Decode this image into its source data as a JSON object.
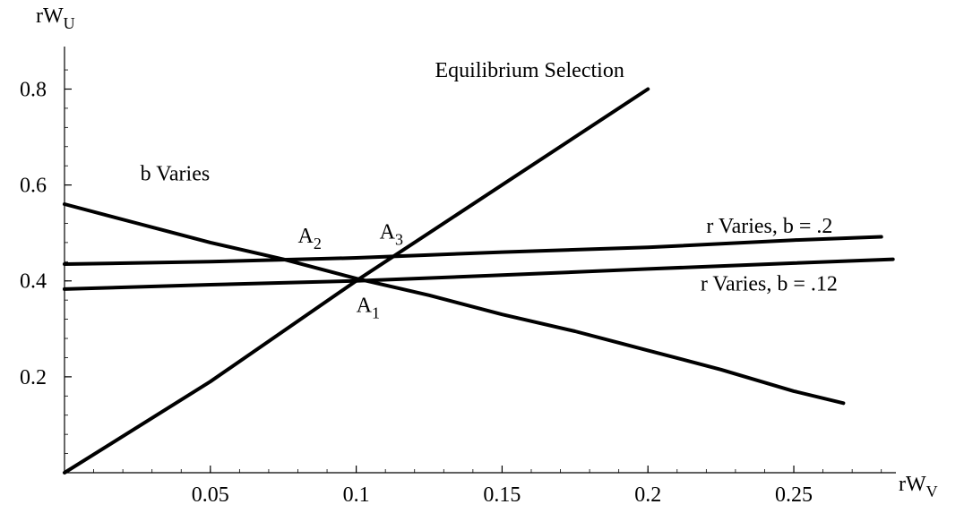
{
  "chart_data": {
    "type": "line",
    "title": "",
    "xlabel": {
      "main": "rW",
      "sub": "V"
    },
    "ylabel": {
      "main": "rW",
      "sub": "U"
    },
    "xlim": [
      0,
      0.285
    ],
    "ylim": [
      0,
      0.87
    ],
    "x_ticks": [
      {
        "value": 0.05,
        "label": "0.05"
      },
      {
        "value": 0.1,
        "label": "0.1"
      },
      {
        "value": 0.15,
        "label": "0.15"
      },
      {
        "value": 0.2,
        "label": "0.2"
      },
      {
        "value": 0.25,
        "label": "0.25"
      }
    ],
    "y_ticks": [
      {
        "value": 0.2,
        "label": "0.2"
      },
      {
        "value": 0.4,
        "label": "0.4"
      },
      {
        "value": 0.6,
        "label": "0.6"
      },
      {
        "value": 0.8,
        "label": "0.8"
      }
    ],
    "x_minor_step": 0.01,
    "y_minor_step": 0.04,
    "grid": false,
    "series": [
      {
        "id": "equilibrium-selection",
        "x": [
          0,
          0.05,
          0.1,
          0.15,
          0.2
        ],
        "y": [
          0,
          0.19,
          0.4,
          0.6,
          0.8
        ]
      },
      {
        "id": "b-varies",
        "x": [
          0,
          0.025,
          0.05,
          0.075,
          0.1,
          0.125,
          0.15,
          0.175,
          0.2,
          0.225,
          0.25,
          0.267
        ],
        "y": [
          0.56,
          0.52,
          0.48,
          0.445,
          0.405,
          0.37,
          0.33,
          0.295,
          0.255,
          0.215,
          0.17,
          0.145
        ]
      },
      {
        "id": "r-varies-b-0.2",
        "x": [
          0,
          0.05,
          0.1,
          0.15,
          0.2,
          0.25,
          0.28
        ],
        "y": [
          0.435,
          0.44,
          0.448,
          0.46,
          0.47,
          0.485,
          0.492
        ]
      },
      {
        "id": "r-varies-b-0.12",
        "x": [
          0,
          0.05,
          0.1,
          0.15,
          0.2,
          0.25,
          0.284
        ],
        "y": [
          0.383,
          0.392,
          0.4,
          0.412,
          0.425,
          0.437,
          0.445
        ]
      }
    ],
    "annotations": [
      {
        "id": "label-equilibrium",
        "text": "Equilibrium Selection",
        "sub": "",
        "x": 0.127,
        "y": 0.825
      },
      {
        "id": "label-b-varies",
        "text": "b  Varies",
        "sub": "",
        "x": 0.026,
        "y": 0.61
      },
      {
        "id": "label-r-varies-b2",
        "text": "r Varies, b =  .2",
        "sub": "",
        "x": 0.22,
        "y": 0.5
      },
      {
        "id": "label-r-varies-b12",
        "text": "r Varies, b =  .12",
        "sub": "",
        "x": 0.218,
        "y": 0.38
      },
      {
        "id": "label-a2",
        "text": "A",
        "sub": "2",
        "x": 0.08,
        "y": 0.48
      },
      {
        "id": "label-a3",
        "text": "A",
        "sub": "3",
        "x": 0.108,
        "y": 0.488
      },
      {
        "id": "label-a1",
        "text": "A",
        "sub": "1",
        "x": 0.1,
        "y": 0.335
      }
    ]
  }
}
